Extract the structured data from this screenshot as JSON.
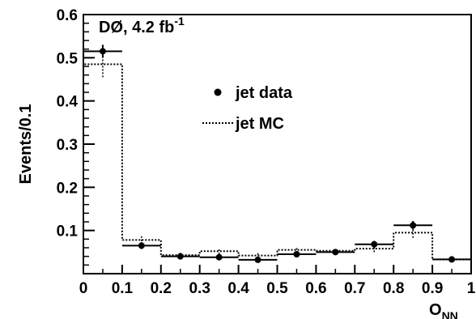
{
  "chart_data": {
    "type": "histogram",
    "annotation": {
      "main": "DØ, 4.2 fb",
      "superscript": "-1"
    },
    "xlabel": {
      "main": "O",
      "subscript": "NN"
    },
    "ylabel": "Events/0.1",
    "xlim": [
      0,
      1
    ],
    "ylim": [
      0,
      0.6
    ],
    "legend_position": "center-right",
    "bins": [
      0,
      0.1,
      0.2,
      0.3,
      0.4,
      0.5,
      0.6,
      0.7,
      0.8,
      0.9,
      1.0
    ],
    "x_tick_labels": [
      "0",
      "0.1",
      "0.2",
      "0.3",
      "0.4",
      "0.5",
      "0.6",
      "0.7",
      "0.8",
      "0.9",
      "1"
    ],
    "y_ticks": [
      0.1,
      0.2,
      0.3,
      0.4,
      0.5,
      0.6
    ],
    "y_tick_labels": [
      "0.1",
      "0.2",
      "0.3",
      "0.4",
      "0.5",
      "0.6"
    ],
    "series": [
      {
        "name": "jet data",
        "style": "markers-with-errors",
        "values": [
          0.515,
          0.065,
          0.04,
          0.038,
          0.032,
          0.045,
          0.05,
          0.068,
          0.112,
          0.033
        ],
        "yerr": [
          0.015,
          0.008,
          0.006,
          0.006,
          0.006,
          0.007,
          0.007,
          0.008,
          0.01,
          0.005
        ]
      },
      {
        "name": "jet MC",
        "style": "dotted-histogram",
        "values": [
          0.485,
          0.078,
          0.043,
          0.052,
          0.042,
          0.055,
          0.053,
          0.058,
          0.095,
          0.033
        ],
        "yerr": [
          0.03,
          0.01,
          0.006,
          0.007,
          0.006,
          0.007,
          0.007,
          0.008,
          0.012,
          0.005
        ]
      }
    ]
  }
}
